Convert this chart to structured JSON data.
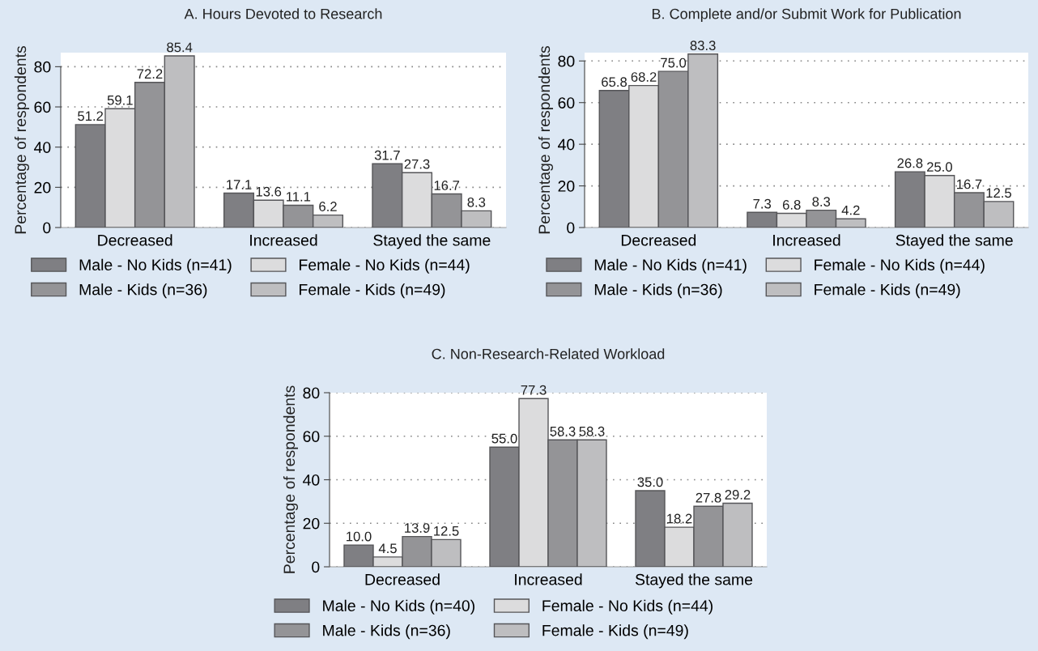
{
  "chart_data": [
    {
      "type": "bar",
      "title": "A. Hours Devoted to Research",
      "ylabel": "Percentage of respondents",
      "categories": [
        "Decreased",
        "Increased",
        "Stayed the same"
      ],
      "ylim": [
        0,
        87
      ],
      "yticks": [
        0,
        20,
        40,
        60,
        80
      ],
      "grid": "y",
      "legend": "bottom",
      "series": [
        {
          "name": "Male - No Kids (n=41)",
          "color": "#7f7f83",
          "values": [
            51.2,
            17.1,
            31.7
          ],
          "value_labels": [
            "51.2",
            "17.1",
            "31.7"
          ]
        },
        {
          "name": "Female - No Kids (n=44)",
          "color": "#dcdcdd",
          "values": [
            59.1,
            13.6,
            27.3
          ],
          "value_labels": [
            "59.1",
            "13.6",
            "27.3"
          ]
        },
        {
          "name": "Male - Kids (n=36)",
          "color": "#949497",
          "values": [
            72.2,
            11.1,
            16.7
          ],
          "value_labels": [
            "72.2",
            "11.1",
            "16.7"
          ]
        },
        {
          "name": "Female - Kids (n=49)",
          "color": "#bebec0",
          "values": [
            85.4,
            6.2,
            8.3
          ],
          "value_labels": [
            "85.4",
            "6.2",
            "8.3"
          ]
        }
      ]
    },
    {
      "type": "bar",
      "title": "B. Complete and/or Submit Work for Publication",
      "ylabel": "Percentage of respondents",
      "categories": [
        "Decreased",
        "Increased",
        "Stayed the same"
      ],
      "ylim": [
        0,
        84
      ],
      "yticks": [
        0,
        20,
        40,
        60,
        80
      ],
      "grid": "y",
      "legend": "bottom",
      "series": [
        {
          "name": "Male - No Kids (n=41)",
          "color": "#7f7f83",
          "values": [
            65.8,
            7.3,
            26.8
          ],
          "value_labels": [
            "65.8",
            "7.3",
            "26.8"
          ]
        },
        {
          "name": "Female - No Kids (n=44)",
          "color": "#dcdcdd",
          "values": [
            68.2,
            6.8,
            25.0
          ],
          "value_labels": [
            "68.2",
            "6.8",
            "25.0"
          ]
        },
        {
          "name": "Male - Kids (n=36)",
          "color": "#949497",
          "values": [
            75.0,
            8.3,
            16.7
          ],
          "value_labels": [
            "75.0",
            "8.3",
            "16.7"
          ]
        },
        {
          "name": "Female - Kids (n=49)",
          "color": "#bebec0",
          "values": [
            83.3,
            4.2,
            12.5
          ],
          "value_labels": [
            "83.3",
            "4.2",
            "12.5"
          ]
        }
      ]
    },
    {
      "type": "bar",
      "title": "C. Non-Research-Related Workload",
      "ylabel": "Percentage of respondents",
      "categories": [
        "Decreased",
        "Increased",
        "Stayed the same"
      ],
      "ylim": [
        0,
        80
      ],
      "yticks": [
        0,
        20,
        40,
        60,
        80
      ],
      "grid": "y",
      "legend": "bottom",
      "series": [
        {
          "name": "Male - No Kids (n=40)",
          "color": "#7f7f83",
          "values": [
            10.0,
            55.0,
            35.0
          ],
          "value_labels": [
            "10.0",
            "55.0",
            "35.0"
          ]
        },
        {
          "name": "Female - No Kids (n=44)",
          "color": "#dcdcdd",
          "values": [
            4.5,
            77.3,
            18.2
          ],
          "value_labels": [
            "4.5",
            "77.3",
            "18.2"
          ]
        },
        {
          "name": "Male - Kids (n=36)",
          "color": "#949497",
          "values": [
            13.9,
            58.3,
            27.8
          ],
          "value_labels": [
            "13.9",
            "58.3",
            "27.8"
          ]
        },
        {
          "name": "Female - Kids (n=49)",
          "color": "#bebec0",
          "values": [
            12.5,
            58.3,
            29.2
          ],
          "value_labels": [
            "12.5",
            "58.3",
            "29.2"
          ]
        }
      ]
    }
  ]
}
